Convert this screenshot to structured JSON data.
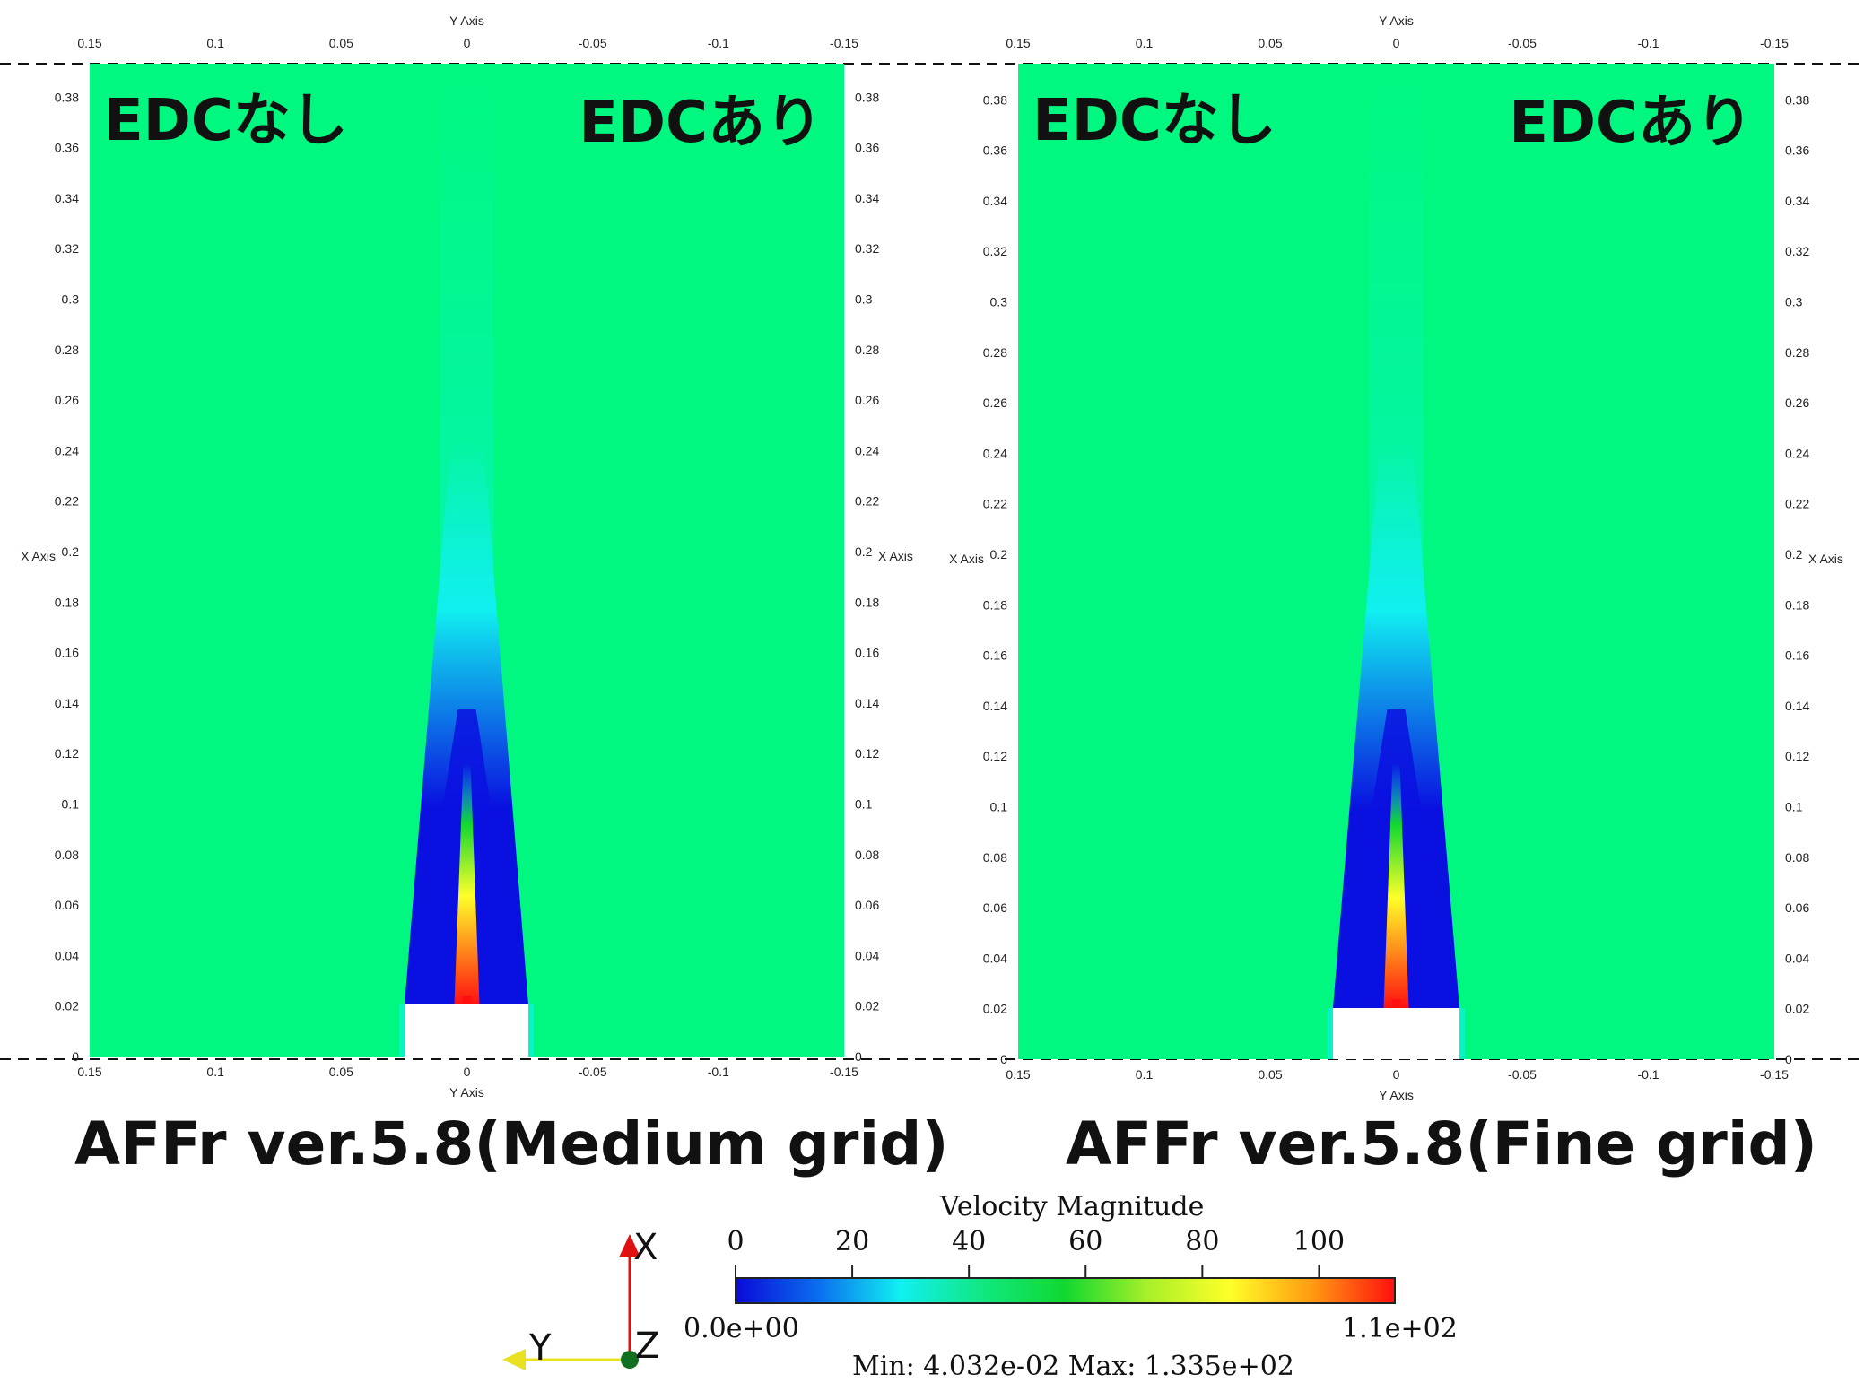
{
  "panels": [
    {
      "id": "medium",
      "label_left": "EDCなし",
      "label_right": "EDCあり",
      "caption": "AFFr ver.5.8(Medium grid)",
      "top_axis_title": "Y Axis",
      "bottom_axis_title": "Y Axis",
      "left_axis_title": "X Axis",
      "right_axis_title": "X Axis",
      "y_axis_ticks": [
        "0.15",
        "0.1",
        "0.05",
        "0",
        "-0.05",
        "-0.1",
        "-0.15"
      ],
      "x_axis_ticks": [
        "0",
        "0.02",
        "0.04",
        "0.06",
        "0.08",
        "0.1",
        "0.12",
        "0.14",
        "0.16",
        "0.18",
        "0.2",
        "0.22",
        "0.24",
        "0.26",
        "0.28",
        "0.3",
        "0.32",
        "0.34",
        "0.36",
        "0.38"
      ]
    },
    {
      "id": "fine",
      "label_left": "EDCなし",
      "label_right": "EDCあり",
      "caption": "AFFr ver.5.8(Fine grid)",
      "top_axis_title": "Y Axis",
      "bottom_axis_title": "Y Axis",
      "left_axis_title": "X Axis",
      "right_axis_title": "X Axis",
      "y_axis_ticks": [
        "0.15",
        "0.1",
        "0.05",
        "0",
        "-0.05",
        "-0.1",
        "-0.15"
      ],
      "x_axis_ticks": [
        "0",
        "0.02",
        "0.04",
        "0.06",
        "0.08",
        "0.1",
        "0.12",
        "0.14",
        "0.16",
        "0.18",
        "0.2",
        "0.22",
        "0.24",
        "0.26",
        "0.28",
        "0.3",
        "0.32",
        "0.34",
        "0.36",
        "0.38"
      ]
    }
  ],
  "colorbar": {
    "title": "Velocity Magnitude",
    "ticks": [
      "0",
      "20",
      "40",
      "60",
      "80",
      "100"
    ],
    "range_min_label": "0.0e+00",
    "range_max_label": "1.1e+02",
    "minmax_text": "Min: 4.032e-02  Max: 1.335e+02",
    "colors": [
      "#0a0ad8",
      "#0a6ef0",
      "#10f0f0",
      "#10e880",
      "#10d830",
      "#a8f028",
      "#ffff28",
      "#ff9a10",
      "#ff1010"
    ]
  },
  "orientation": {
    "x_label": "X",
    "y_label": "Y",
    "z_label": "Z",
    "colors": {
      "x": "#e01010",
      "y": "#e8e020",
      "z": "#107020"
    }
  },
  "field_colors": {
    "background": "#00f880",
    "plume_outer": "#10f0f0",
    "plume_inner": "#0a10e0",
    "core": "#ff1010",
    "solid": "#ffffff"
  }
}
